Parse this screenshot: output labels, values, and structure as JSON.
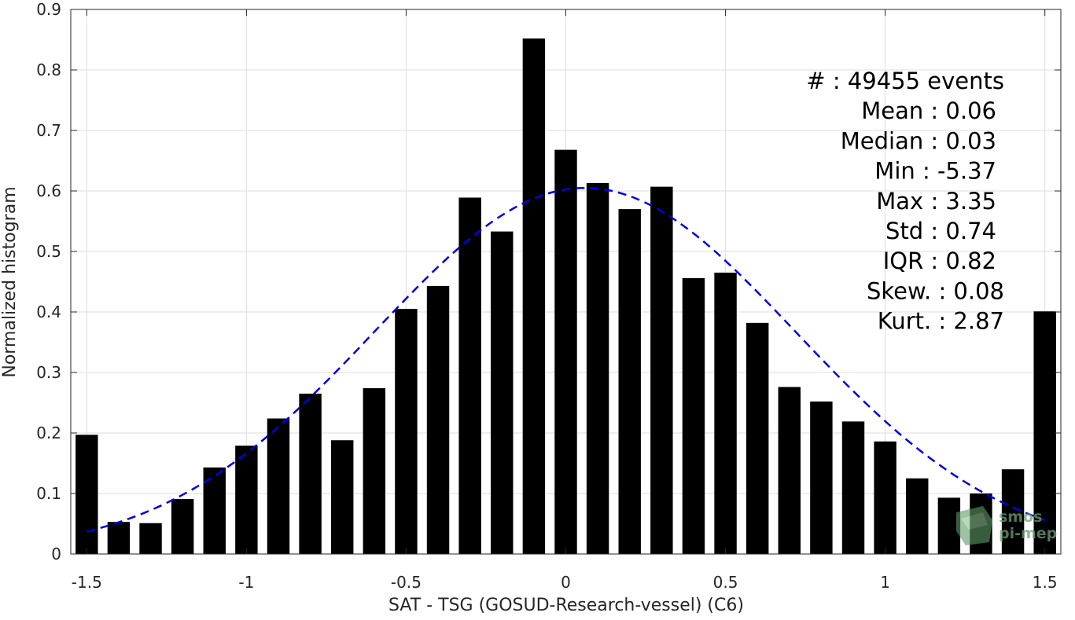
{
  "chart_data": {
    "type": "bar",
    "xlabel": "SAT - TSG (GOSUD-Research-vessel) (C6)",
    "ylabel": "Normalized histogram",
    "xlim": [
      -1.55,
      1.55
    ],
    "ylim": [
      0,
      0.9
    ],
    "x_ticks": [
      -1.5,
      -1,
      -0.5,
      0,
      0.5,
      1,
      1.5
    ],
    "x_tick_labels": [
      "-1.5",
      "-1",
      "-0.5",
      "0",
      "0.5",
      "1",
      "1.5"
    ],
    "y_ticks": [
      0,
      0.1,
      0.2,
      0.3,
      0.4,
      0.5,
      0.6,
      0.7,
      0.8,
      0.9
    ],
    "y_tick_labels": [
      "0",
      "0.1",
      "0.2",
      "0.3",
      "0.4",
      "0.5",
      "0.6",
      "0.7",
      "0.8",
      "0.9"
    ],
    "grid": true,
    "bar_color": "#000000",
    "bin_width": 0.1,
    "bins": [
      -1.5,
      -1.4,
      -1.3,
      -1.2,
      -1.1,
      -1.0,
      -0.9,
      -0.8,
      -0.7,
      -0.6,
      -0.5,
      -0.4,
      -0.3,
      -0.2,
      -0.1,
      0.0,
      0.1,
      0.2,
      0.3,
      0.4,
      0.5,
      0.6,
      0.7,
      0.8,
      0.9,
      1.0,
      1.1,
      1.2,
      1.3,
      1.4,
      1.5
    ],
    "values": [
      0.197,
      0.053,
      0.051,
      0.091,
      0.143,
      0.179,
      0.224,
      0.265,
      0.188,
      0.274,
      0.405,
      0.443,
      0.589,
      0.533,
      0.852,
      0.668,
      0.613,
      0.57,
      0.607,
      0.456,
      0.465,
      0.382,
      0.276,
      0.252,
      0.219,
      0.186,
      0.125,
      0.093,
      0.1,
      0.14,
      0.401
    ],
    "fit_curve": {
      "type": "gaussian",
      "style": "dashed",
      "color": "#0000e6",
      "mean": 0.06,
      "std": 0.66,
      "peak": 0.605,
      "x_range": [
        -1.5,
        1.5
      ]
    },
    "stats_lines": [
      "#  : 49455 events",
      "Mean : 0.06",
      "Median : 0.03",
      "Min : -5.37",
      "Max : 3.35",
      "Std : 0.74",
      "IQR : 0.82",
      "Skew. : 0.08",
      "Kurt. : 2.87"
    ]
  },
  "watermark": {
    "line1": "smos",
    "line2": "pi-mep",
    "color": "#6f9f78"
  }
}
